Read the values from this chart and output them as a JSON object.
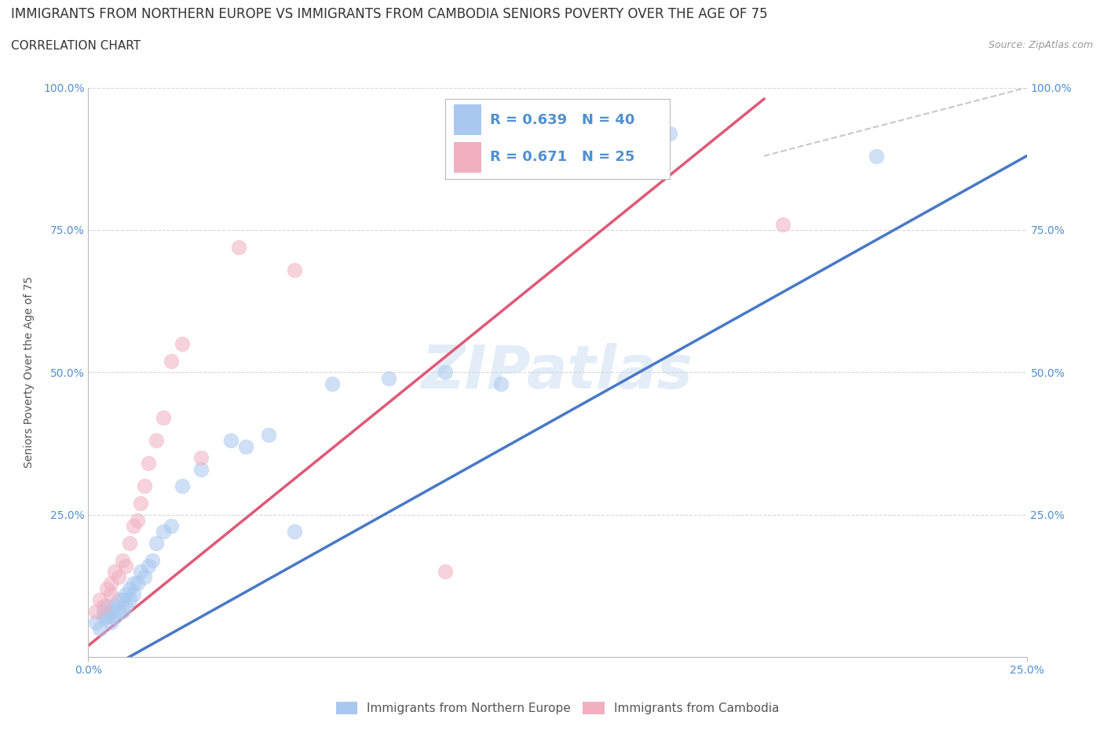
{
  "title": "IMMIGRANTS FROM NORTHERN EUROPE VS IMMIGRANTS FROM CAMBODIA SENIORS POVERTY OVER THE AGE OF 75",
  "subtitle": "CORRELATION CHART",
  "source": "Source: ZipAtlas.com",
  "ylabel": "Seniors Poverty Over the Age of 75",
  "watermark": "ZIPatlas",
  "legend_labels": [
    "Immigrants from Northern Europe",
    "Immigrants from Cambodia"
  ],
  "R_blue": 0.639,
  "N_blue": 40,
  "R_pink": 0.671,
  "N_pink": 25,
  "blue_color": "#a8c8f0",
  "pink_color": "#f0b0c0",
  "line_blue": "#4878c8",
  "line_pink": "#e05878",
  "line_dash_color": "#c8c8c8",
  "xlim": [
    0.0,
    0.25
  ],
  "ylim": [
    0.0,
    1.0
  ],
  "blue_scatter_x": [
    0.002,
    0.003,
    0.004,
    0.004,
    0.005,
    0.005,
    0.006,
    0.006,
    0.007,
    0.007,
    0.008,
    0.008,
    0.009,
    0.009,
    0.01,
    0.01,
    0.011,
    0.011,
    0.012,
    0.012,
    0.013,
    0.014,
    0.015,
    0.016,
    0.017,
    0.018,
    0.02,
    0.022,
    0.025,
    0.03,
    0.038,
    0.042,
    0.048,
    0.055,
    0.065,
    0.08,
    0.095,
    0.11,
    0.155,
    0.21
  ],
  "blue_scatter_y": [
    0.06,
    0.05,
    0.08,
    0.07,
    0.07,
    0.09,
    0.08,
    0.06,
    0.09,
    0.07,
    0.08,
    0.1,
    0.1,
    0.08,
    0.11,
    0.09,
    0.1,
    0.12,
    0.11,
    0.13,
    0.13,
    0.15,
    0.14,
    0.16,
    0.17,
    0.2,
    0.22,
    0.23,
    0.3,
    0.33,
    0.38,
    0.37,
    0.39,
    0.22,
    0.48,
    0.49,
    0.5,
    0.48,
    0.92,
    0.88
  ],
  "pink_scatter_x": [
    0.002,
    0.003,
    0.004,
    0.005,
    0.006,
    0.006,
    0.007,
    0.008,
    0.009,
    0.01,
    0.011,
    0.012,
    0.013,
    0.014,
    0.015,
    0.016,
    0.018,
    0.02,
    0.022,
    0.025,
    0.03,
    0.04,
    0.055,
    0.095,
    0.185
  ],
  "pink_scatter_y": [
    0.08,
    0.1,
    0.09,
    0.12,
    0.11,
    0.13,
    0.15,
    0.14,
    0.17,
    0.16,
    0.2,
    0.23,
    0.24,
    0.27,
    0.3,
    0.34,
    0.38,
    0.42,
    0.52,
    0.55,
    0.35,
    0.72,
    0.68,
    0.15,
    0.76
  ],
  "blue_line_x": [
    0.0,
    0.25
  ],
  "blue_line_y": [
    -0.04,
    0.88
  ],
  "pink_line_x": [
    0.0,
    0.18
  ],
  "pink_line_y": [
    0.02,
    0.98
  ],
  "dash_line_x": [
    0.18,
    0.25
  ],
  "dash_line_y": [
    0.88,
    1.0
  ],
  "grid_color": "#d8d8d8",
  "background_color": "#ffffff",
  "title_fontsize": 12,
  "subtitle_fontsize": 11,
  "axis_label_fontsize": 10,
  "tick_fontsize": 10,
  "legend_fontsize": 13
}
